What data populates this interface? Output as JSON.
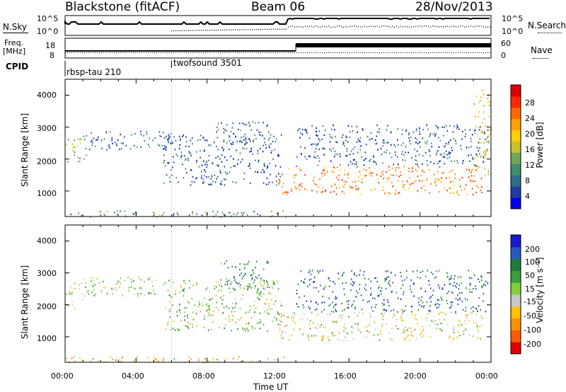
{
  "header": {
    "station": "Blackstone (fitACF)",
    "beam": "Beam 06",
    "date": "28/Nov/2013"
  },
  "top_panels": {
    "nsky_label": "N.Sky",
    "nsky_ticks": [
      "10^5",
      "10^0"
    ],
    "nsearch_label": "N.Search",
    "nsearch_ticks": [
      "10^5",
      "10^0"
    ],
    "freq_label_1": "Freq.",
    "freq_label_2": "[MHz]",
    "freq_ticks": [
      "18",
      "8"
    ],
    "nave_label": "Nave",
    "nave_ticks": [
      "60",
      "0"
    ],
    "cpid_label": "CPID",
    "cpid_segments": [
      {
        "name": "rbsp-tau 210",
        "start_hour": 0,
        "end_hour": 6
      },
      {
        "name": "twofsound 3501",
        "start_hour": 6,
        "end_hour": 24
      }
    ]
  },
  "chart_data": [
    {
      "type": "heatmap",
      "panel": "power",
      "ylabel": "Slant Range [km]",
      "xlabel": "Time UT",
      "xlim": [
        0,
        24
      ],
      "ylim": [
        200,
        4500
      ],
      "yticks": [
        "1000",
        "2000",
        "3000",
        "4000"
      ],
      "xticks": [
        "00:00",
        "04:00",
        "08:00",
        "12:00",
        "16:00",
        "20:00",
        "00:00"
      ],
      "colorbar": {
        "label": "Power [dB]",
        "range": [
          0,
          32
        ],
        "ticks": [
          "4",
          "8",
          "12",
          "16",
          "20",
          "24",
          "28"
        ],
        "colors": [
          "#0000ee",
          "#1e3c9e",
          "#2e6e8c",
          "#3f8f6a",
          "#6fa85a",
          "#c8c030",
          "#ffd000",
          "#ffa000",
          "#ff6a00",
          "#ff2a00",
          "#e00000"
        ]
      },
      "echo_bands": [
        {
          "t_start": 0.0,
          "t_end": 1.2,
          "range_start": 1900,
          "range_end": 2700,
          "level": 14
        },
        {
          "t_start": 1.0,
          "t_end": 6.0,
          "range_start": 2300,
          "range_end": 2900,
          "level": 6
        },
        {
          "t_start": 5.5,
          "t_end": 12.2,
          "range_start": 1200,
          "range_end": 2800,
          "level": 6
        },
        {
          "t_start": 8.5,
          "t_end": 11.5,
          "range_start": 2500,
          "range_end": 3200,
          "level": 7
        },
        {
          "t_start": 12.0,
          "t_end": 23.5,
          "range_start": 900,
          "range_end": 1800,
          "level": 24
        },
        {
          "t_start": 13.0,
          "t_end": 23.8,
          "range_start": 1800,
          "range_end": 3100,
          "level": 6
        },
        {
          "t_start": 23.0,
          "t_end": 24.0,
          "range_start": 1500,
          "range_end": 4200,
          "level": 18
        },
        {
          "t_start": 0.0,
          "t_end": 12.5,
          "range_start": 200,
          "range_end": 400,
          "level": 10
        }
      ]
    },
    {
      "type": "heatmap",
      "panel": "velocity",
      "ylabel": "Slant Range [km]",
      "xlabel": "Time UT",
      "xlim": [
        0,
        24
      ],
      "ylim": [
        200,
        4500
      ],
      "yticks": [
        "1000",
        "2000",
        "3000",
        "4000"
      ],
      "xticks": [
        "00:00",
        "04:00",
        "08:00",
        "12:00",
        "16:00",
        "20:00",
        "00:00"
      ],
      "colorbar": {
        "label": "Velocity [m s⁻¹]",
        "ticks": [
          "200",
          "100",
          "50",
          "15",
          "-15",
          "-50",
          "-100",
          "-200"
        ],
        "colors": [
          "#1a1ad0",
          "#2a58c0",
          "#1e7a3e",
          "#3c9e3c",
          "#7fd03c",
          "#c8c8c8",
          "#ffc000",
          "#ff9000",
          "#ff5a00",
          "#e00000"
        ]
      },
      "echo_bands": [
        {
          "t_start": 0.0,
          "t_end": 1.2,
          "range_start": 1900,
          "range_end": 2700,
          "velocity": 0
        },
        {
          "t_start": 1.0,
          "t_end": 6.0,
          "range_start": 2300,
          "range_end": 2900,
          "velocity": 30
        },
        {
          "t_start": 5.5,
          "t_end": 12.2,
          "range_start": 1200,
          "range_end": 2800,
          "velocity": 40
        },
        {
          "t_start": 8.5,
          "t_end": 11.5,
          "range_start": 2500,
          "range_end": 3400,
          "velocity": 120
        },
        {
          "t_start": 12.0,
          "t_end": 23.5,
          "range_start": 900,
          "range_end": 1800,
          "velocity": 0
        },
        {
          "t_start": 13.0,
          "t_end": 23.8,
          "range_start": 1800,
          "range_end": 3100,
          "velocity": 150
        },
        {
          "t_start": 0.0,
          "t_end": 12.5,
          "range_start": 200,
          "range_end": 400,
          "velocity": -40
        }
      ]
    }
  ]
}
